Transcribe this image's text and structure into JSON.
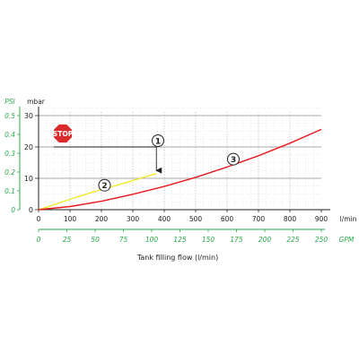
{
  "chart_data": {
    "type": "line",
    "xlabel": "Tank filling flow (l/min)",
    "x_unit": "l/min",
    "x2_unit": "GPM",
    "x_ticks": [
      0,
      100,
      200,
      300,
      400,
      500,
      600,
      700,
      800,
      900
    ],
    "x2_ticks": [
      0,
      25,
      50,
      75,
      100,
      125,
      150,
      175,
      200,
      225,
      250
    ],
    "xlim": [
      0,
      900
    ],
    "x2lim": [
      0,
      250
    ],
    "y_unit": "mbar",
    "y2_unit": "PSI",
    "y_ticks": [
      0,
      10,
      20,
      30
    ],
    "y2_ticks": [
      "0",
      "0.1",
      "0.2",
      "0.3",
      "0.4",
      "0.5"
    ],
    "ylim": [
      0,
      30
    ],
    "y2lim": [
      0,
      0.5
    ],
    "grid": true,
    "series": [
      {
        "name": "2",
        "color": "#f0ea2a",
        "x": [
          0,
          50,
          100,
          150,
          200,
          250,
          300,
          350,
          375
        ],
        "y": [
          0,
          1.6,
          3.3,
          4.9,
          6.4,
          7.8,
          9.3,
          10.8,
          11.5
        ]
      },
      {
        "name": "3",
        "color": "#e8191c",
        "x": [
          0,
          100,
          200,
          300,
          400,
          500,
          600,
          700,
          800,
          900
        ],
        "y": [
          0,
          1.0,
          2.7,
          4.9,
          7.4,
          10.3,
          13.6,
          17.2,
          21.2,
          25.6
        ]
      }
    ],
    "annotations": [
      {
        "label": "1",
        "x": 380,
        "y": 22
      },
      {
        "label": "2",
        "x": 210,
        "y": 7.8
      },
      {
        "label": "3",
        "x": 620,
        "y": 16.1
      }
    ],
    "threshold": {
      "y": 20,
      "x_end": 375,
      "arrow_to_y": 12.5
    },
    "stop_sign": {
      "text": "STOP",
      "color": "#d92b2b"
    }
  }
}
